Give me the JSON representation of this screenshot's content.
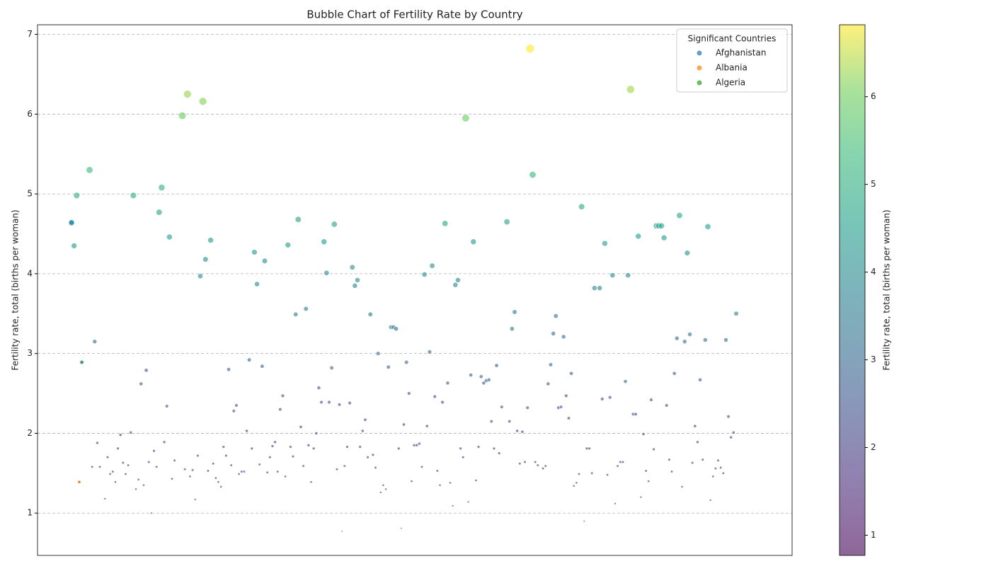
{
  "chart_data": {
    "type": "scatter",
    "title": "Bubble Chart of Fertility Rate by Country",
    "ylabel": "Fertility rate, total (births per woman)",
    "xlim": [
      -13.2,
      279.7
    ],
    "ylim": [
      0.47,
      7.12
    ],
    "yticks": [
      1,
      2,
      3,
      4,
      5,
      6,
      7
    ],
    "grid": true,
    "x": [
      0,
      1,
      2,
      3,
      4,
      7,
      8,
      9,
      10,
      11,
      13,
      14,
      15,
      16,
      17,
      18,
      19,
      20,
      21,
      22,
      23,
      24,
      25,
      26,
      27,
      28,
      29,
      30,
      31,
      32,
      33,
      34,
      35,
      36,
      37,
      38,
      39,
      40,
      43,
      44,
      45,
      46,
      47,
      48,
      49,
      50,
      51,
      52,
      53,
      54,
      55,
      56,
      57,
      58,
      59,
      60,
      61,
      62,
      63,
      64,
      65,
      66,
      67,
      68,
      69,
      70,
      71,
      72,
      73,
      74,
      75,
      76,
      77,
      78,
      79,
      80,
      81,
      82,
      83,
      84,
      85,
      86,
      87,
      88,
      89,
      90,
      91,
      92,
      93,
      94,
      95,
      96,
      97,
      98,
      99,
      100,
      101,
      102,
      103,
      104,
      105,
      106,
      107,
      108,
      109,
      110,
      111,
      112,
      113,
      114,
      115,
      116,
      117,
      118,
      119,
      120,
      121,
      122,
      123,
      124,
      125,
      126,
      127,
      128,
      129,
      130,
      131,
      132,
      133,
      134,
      135,
      136,
      137,
      138,
      139,
      140,
      141,
      142,
      143,
      144,
      145,
      146,
      147,
      148,
      149,
      150,
      151,
      152,
      153,
      154,
      155,
      156,
      157,
      158,
      159,
      160,
      161,
      162,
      163,
      164,
      165,
      166,
      167,
      169,
      170,
      171,
      172,
      173,
      174,
      175,
      176,
      177,
      178,
      179,
      180,
      181,
      183,
      184,
      185,
      186,
      187,
      188,
      189,
      190,
      191,
      192,
      193,
      194,
      195,
      196,
      197,
      198,
      199,
      200,
      201,
      202,
      203,
      205,
      206,
      207,
      208,
      209,
      210,
      211,
      212,
      213,
      214,
      215,
      216,
      217,
      218,
      219,
      220,
      221,
      222,
      223,
      224,
      225,
      226,
      227,
      228,
      229,
      230,
      231,
      232,
      233,
      234,
      235,
      236,
      237,
      238,
      239,
      240,
      241,
      242,
      243,
      244,
      245,
      246,
      247,
      248,
      249,
      250,
      251,
      252,
      253,
      254,
      255,
      256,
      257,
      258
    ],
    "values": [
      4.64,
      4.35,
      4.98,
      1.39,
      2.89,
      5.3,
      1.58,
      3.15,
      1.88,
      1.58,
      1.18,
      1.7,
      1.49,
      1.52,
      1.39,
      1.81,
      1.98,
      1.63,
      1.49,
      1.6,
      2.01,
      4.98,
      1.3,
      1.42,
      2.62,
      1.35,
      2.79,
      1.64,
      1.0,
      1.78,
      1.58,
      4.77,
      5.08,
      1.89,
      2.34,
      4.46,
      1.43,
      1.66,
      5.98,
      1.55,
      6.25,
      1.46,
      1.54,
      1.17,
      1.72,
      3.97,
      6.16,
      4.18,
      1.53,
      4.42,
      1.62,
      1.44,
      1.39,
      1.33,
      1.83,
      1.72,
      2.8,
      1.6,
      2.28,
      2.35,
      1.49,
      1.52,
      1.52,
      2.03,
      2.92,
      1.81,
      4.27,
      3.87,
      1.61,
      2.84,
      4.16,
      1.51,
      1.7,
      1.84,
      1.89,
      1.52,
      2.3,
      2.47,
      1.46,
      4.36,
      1.83,
      1.71,
      3.49,
      4.68,
      2.08,
      1.59,
      3.56,
      1.85,
      1.39,
      1.81,
      2.0,
      2.57,
      2.39,
      4.4,
      4.01,
      2.39,
      2.82,
      4.62,
      1.55,
      2.36,
      0.77,
      1.59,
      1.83,
      2.38,
      4.08,
      3.85,
      3.92,
      1.83,
      2.03,
      2.17,
      1.7,
      3.49,
      1.73,
      1.57,
      3.0,
      1.26,
      1.35,
      1.3,
      2.83,
      3.33,
      3.33,
      3.31,
      1.81,
      0.81,
      2.11,
      2.89,
      2.5,
      1.4,
      1.85,
      1.85,
      1.87,
      1.58,
      3.99,
      2.09,
      3.02,
      4.1,
      2.46,
      1.53,
      1.35,
      2.39,
      4.63,
      2.63,
      1.38,
      1.09,
      3.86,
      3.92,
      1.81,
      1.7,
      5.95,
      1.14,
      2.73,
      4.4,
      1.41,
      1.83,
      2.71,
      2.63,
      2.66,
      2.67,
      2.15,
      1.81,
      2.85,
      1.75,
      2.33,
      4.65,
      2.15,
      3.31,
      3.52,
      2.03,
      1.62,
      2.02,
      1.64,
      2.32,
      6.82,
      5.24,
      1.64,
      1.6,
      1.56,
      1.59,
      2.62,
      2.86,
      3.25,
      3.47,
      2.32,
      2.33,
      3.21,
      2.47,
      2.19,
      2.75,
      1.34,
      1.38,
      1.49,
      4.84,
      0.9,
      1.81,
      1.81,
      1.5,
      3.82,
      3.82,
      2.43,
      4.38,
      1.48,
      2.45,
      3.98,
      1.12,
      1.59,
      1.64,
      1.64,
      2.65,
      3.98,
      6.31,
      2.24,
      2.24,
      4.47,
      1.2,
      1.99,
      1.53,
      1.4,
      2.42,
      1.8,
      4.6,
      4.6,
      4.6,
      4.45,
      2.35,
      1.67,
      1.52,
      2.75,
      3.19,
      4.73,
      1.33,
      3.15,
      4.26,
      3.24,
      1.63,
      2.09,
      1.89,
      2.67,
      1.67,
      3.17,
      4.59,
      1.16,
      1.46,
      1.56,
      1.66,
      1.57,
      1.5,
      3.17,
      2.21,
      1.95,
      2.01,
      3.5
    ],
    "series": [
      {
        "name": "Afghanistan",
        "color": "#1f77b4",
        "x": [
          0
        ],
        "values": [
          4.64
        ]
      },
      {
        "name": "Albania",
        "color": "#ff7f0e",
        "x": [
          3
        ],
        "values": [
          1.39
        ]
      },
      {
        "name": "Algeria",
        "color": "#2ca02c",
        "x": [
          4
        ],
        "values": [
          2.89
        ]
      }
    ],
    "legend": {
      "title": "Significant Countries",
      "loc": "upper right"
    },
    "colorbar": {
      "label": "Fertility rate, total (births per woman)",
      "colormap": "viridis",
      "lim": [
        0.77,
        6.82
      ],
      "ticks": [
        1,
        2,
        3,
        4,
        5,
        6
      ]
    }
  }
}
